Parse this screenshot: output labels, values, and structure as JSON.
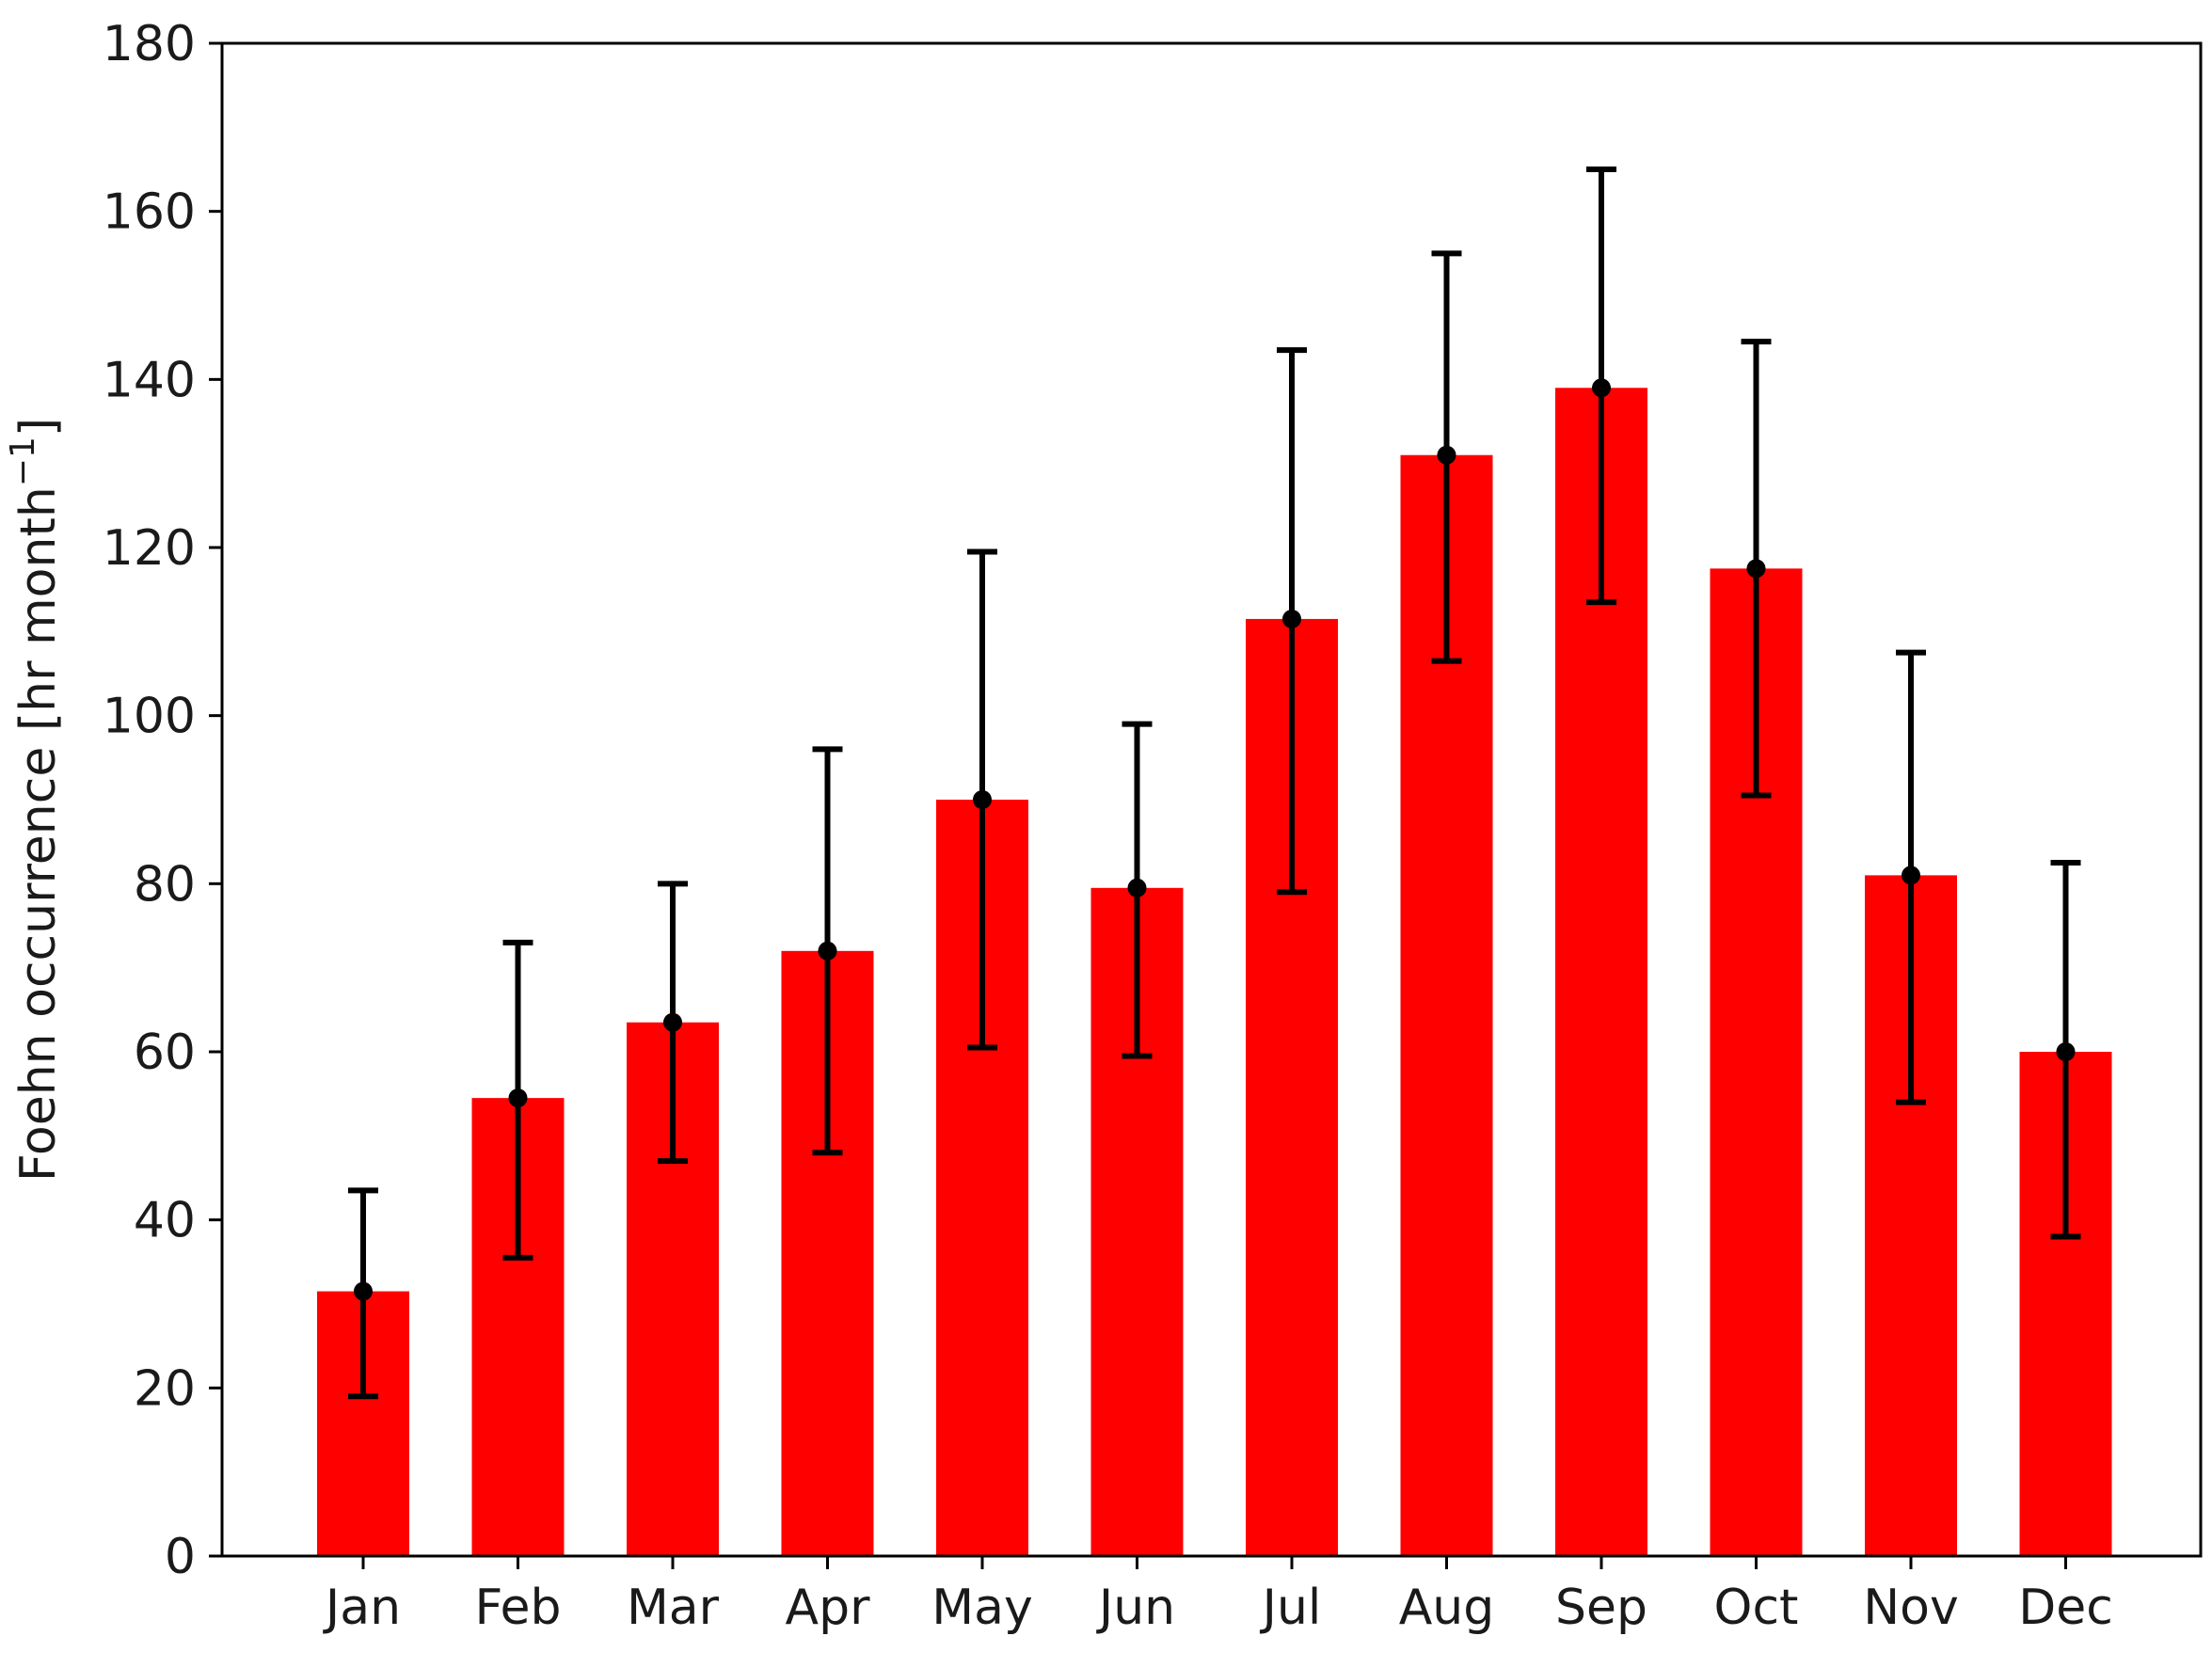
{
  "chart_data": {
    "type": "bar",
    "title": "",
    "xlabel": "",
    "ylabel": "Foehn occurrence [hr month",
    "ylabel_sup": "−1",
    "ylabel_close": "]",
    "categories": [
      "Jan",
      "Feb",
      "Mar",
      "Apr",
      "May",
      "Jun",
      "Jul",
      "Aug",
      "Sep",
      "Oct",
      "Nov",
      "Dec"
    ],
    "values": [
      31.5,
      54.5,
      63.5,
      72,
      90,
      79.5,
      111.5,
      131,
      139,
      117.5,
      81,
      60
    ],
    "error_low": [
      19,
      35.5,
      47,
      48,
      60.5,
      59.5,
      79,
      106.5,
      113.5,
      90.5,
      54,
      38
    ],
    "error_high": [
      43.5,
      73,
      80,
      96,
      119.5,
      99,
      143.5,
      155,
      165,
      144.5,
      107.5,
      82.5
    ],
    "ylim": [
      0,
      180
    ],
    "yticks": [
      "0",
      "20",
      "40",
      "60",
      "80",
      "100",
      "120",
      "140",
      "160",
      "180"
    ],
    "grid": false,
    "colors": {
      "bar": "#ff0000",
      "error": "#000000",
      "axis": "#000000"
    }
  }
}
